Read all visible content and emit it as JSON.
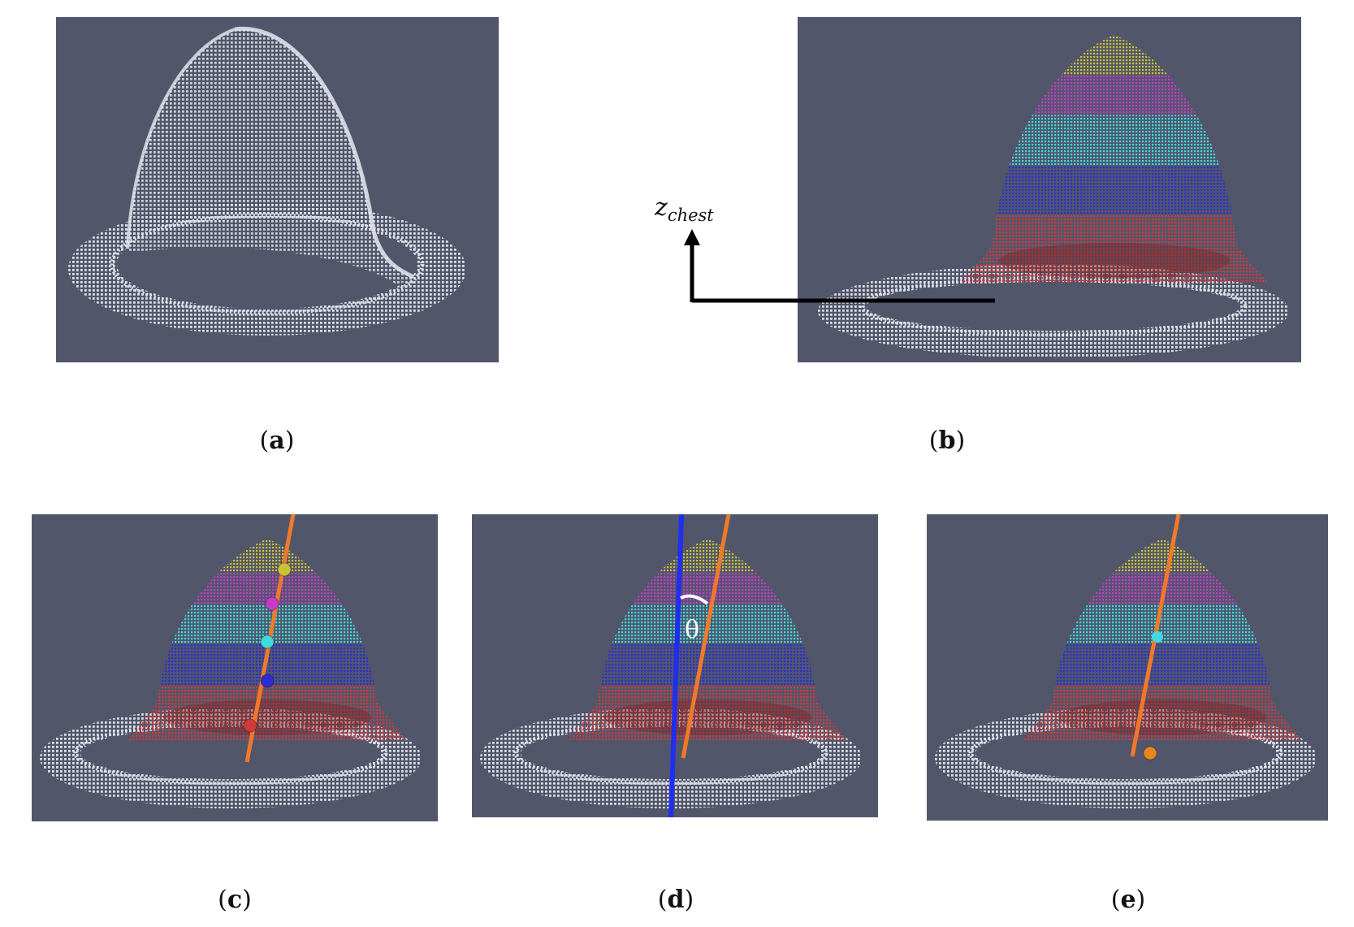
{
  "figure": {
    "panels": [
      {
        "id": "a",
        "caption_letter": "a",
        "segments": [],
        "axis_line": false,
        "tilted_line": false,
        "markers": []
      },
      {
        "id": "b",
        "caption_letter": "b",
        "segments": [
          "yellow",
          "magenta",
          "cyan",
          "blue",
          "red"
        ],
        "axis_line": false,
        "tilted_line": false,
        "markers": []
      },
      {
        "id": "c",
        "caption_letter": "c",
        "segments": [
          "yellow",
          "magenta",
          "cyan",
          "blue",
          "red"
        ],
        "axis_line": false,
        "tilted_line": true,
        "markers": [
          "yellow",
          "magenta",
          "cyan",
          "blue",
          "red"
        ]
      },
      {
        "id": "d",
        "caption_letter": "d",
        "segments": [
          "yellow",
          "magenta",
          "cyan",
          "blue",
          "red"
        ],
        "axis_line": true,
        "tilted_line": true,
        "markers": [],
        "angle_symbol": "θ"
      },
      {
        "id": "e",
        "caption_letter": "e",
        "segments": [
          "yellow",
          "magenta",
          "cyan",
          "blue",
          "red"
        ],
        "axis_line": false,
        "tilted_line": true,
        "markers": [
          "cyan",
          "orange"
        ]
      }
    ],
    "axis_label": {
      "main": "z",
      "sub": "chest"
    },
    "colors": {
      "panel_bg": "#51566b",
      "point_white": "#e6e8ee",
      "yellow": "#c9c234",
      "magenta": "#c63cc9",
      "cyan": "#40d9dd",
      "blue": "#2b2fd1",
      "red": "#d23a3a",
      "orange_line": "#f07a2a",
      "blue_line": "#1f2ef0"
    }
  },
  "captions": {
    "a": {
      "open": "(",
      "letter": "a",
      "close": ")"
    },
    "b": {
      "open": "(",
      "letter": "b",
      "close": ")"
    },
    "c": {
      "open": "(",
      "letter": "c",
      "close": ")"
    },
    "d": {
      "open": "(",
      "letter": "d",
      "close": ")"
    },
    "e": {
      "open": "(",
      "letter": "e",
      "close": ")"
    }
  }
}
